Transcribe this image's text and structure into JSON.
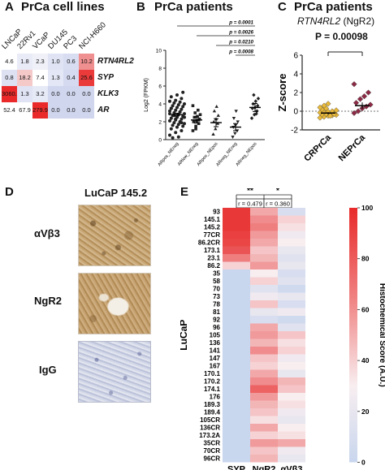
{
  "panelA": {
    "letter": "A",
    "title": "PrCa cell lines",
    "columns": [
      "LNCaP",
      "22Rv1",
      "VCaP",
      "DU145",
      "PC3",
      "NCI-H660"
    ],
    "rows": [
      "RTN4RL2",
      "SYP",
      "KLK3",
      "AR"
    ],
    "values": [
      [
        "4.6",
        "1.8",
        "2.3",
        "1.0",
        "0.6",
        "10.2"
      ],
      [
        "0.8",
        "18.2",
        "7.4",
        "1.3",
        "0.4",
        "25.6"
      ],
      [
        "3060.1",
        "1.3",
        "3.2",
        "0.0",
        "0.0",
        "0.0"
      ],
      [
        "52.4",
        "67.9",
        "279.9",
        "0.0",
        "0.0",
        "0.0"
      ]
    ],
    "colors": [
      [
        "#ffffff",
        "#e9ebf7",
        "#eff0f8",
        "#dfe3f3",
        "#d8ddf1",
        "#f08f8f"
      ],
      [
        "#dde1f2",
        "#f6c9c9",
        "#ffffff",
        "#e4e7f5",
        "#d5daf0",
        "#ea3a3a"
      ],
      [
        "#ea2a2a",
        "#e0e3f4",
        "#e6e9f6",
        "#d0d6ee",
        "#d0d6ee",
        "#d0d6ee"
      ],
      [
        "#ffffff",
        "#ffffff",
        "#ea2a2a",
        "#d0d6ee",
        "#d0d6ee",
        "#d0d6ee"
      ]
    ]
  },
  "panelB": {
    "letter": "B",
    "title": "PrCa patients",
    "ylabel": "Log2 (FPKM)",
    "yticks": [
      "0",
      "2",
      "4",
      "6",
      "8",
      "10"
    ],
    "categories": [
      "ARpos_NEneg",
      "ARlow_NEneg",
      "ARpos_NEpos",
      "ARneg_NEneg",
      "ARneg_NEpos"
    ],
    "pvalues": [
      "p = 0.0001",
      "p = 0.0026",
      "p = 0.0210",
      "p = 0.0008"
    ]
  },
  "panelC": {
    "letter": "C",
    "title": "PrCa patients",
    "subtitle_gene": "RTN4RL2",
    "subtitle_rest": " (NgR2)",
    "pvalue": "P = 0.00098",
    "ylabel": "Z-score",
    "yticks": [
      "-2",
      "0",
      "2",
      "4",
      "6"
    ],
    "categories": [
      "CRPrCa",
      "NEPrCa"
    ]
  },
  "panelD": {
    "letter": "D",
    "title": "LuCaP 145.2",
    "labels": [
      "αVβ3",
      "NgR2",
      "IgG"
    ]
  },
  "panelE": {
    "letter": "E",
    "sig_left": "**",
    "sig_right": "*",
    "r_left": "r = 0.479",
    "r_right": "r = 0.360",
    "ylabel": "LuCaP",
    "columns": [
      "SYP",
      "NgR2",
      "αVβ3"
    ],
    "rows": [
      "93",
      "145.1",
      "145.2",
      "77CR",
      "86.2CR",
      "173.1",
      "23.1",
      "86.2",
      "35",
      "58",
      "70",
      "73",
      "78",
      "81",
      "92",
      "96",
      "105",
      "136",
      "141",
      "147",
      "167",
      "170.1",
      "170.2",
      "174.1",
      "176",
      "189.3",
      "189.4",
      "105CR",
      "136CR",
      "173.2A",
      "35CR",
      "70CR",
      "96CR"
    ],
    "colorbar_label": "Histochemical Score (A.U.)",
    "colorbar_ticks": [
      "0",
      "20",
      "40",
      "60",
      "80",
      "100"
    ]
  },
  "chart_data": [
    {
      "type": "table",
      "panel": "A",
      "title": "PrCa cell lines",
      "columns": [
        "LNCaP",
        "22Rv1",
        "VCaP",
        "DU145",
        "PC3",
        "NCI-H660"
      ],
      "rows": [
        "RTN4RL2",
        "SYP",
        "KLK3",
        "AR"
      ],
      "values": [
        [
          4.6,
          1.8,
          2.3,
          1.0,
          0.6,
          10.2
        ],
        [
          0.8,
          18.2,
          7.4,
          1.3,
          0.4,
          25.6
        ],
        [
          3060.1,
          1.3,
          3.2,
          0.0,
          0.0,
          0.0
        ],
        [
          52.4,
          67.9,
          279.9,
          0.0,
          0.0,
          0.0
        ]
      ]
    },
    {
      "type": "scatter",
      "panel": "B",
      "title": "PrCa patients",
      "ylabel": "Log2 (FPKM)",
      "ylim": [
        0,
        10
      ],
      "categories": [
        "ARpos_NEneg",
        "ARlow_NEneg",
        "ARpos_NEpos",
        "ARneg_NEneg",
        "ARneg_NEpos"
      ],
      "means": [
        2.8,
        2.2,
        1.9,
        1.4,
        3.6
      ],
      "sem": [
        0.15,
        0.35,
        0.45,
        0.4,
        0.45
      ],
      "points": [
        [
          0.5,
          0.8,
          1.0,
          1.2,
          1.4,
          1.5,
          1.6,
          1.7,
          1.8,
          1.9,
          2.0,
          2.1,
          2.2,
          2.3,
          2.4,
          2.5,
          2.6,
          2.7,
          2.8,
          2.9,
          3.0,
          3.1,
          3.2,
          3.3,
          3.4,
          3.5,
          3.6,
          3.7,
          3.8,
          3.9,
          4.0,
          4.1,
          4.2,
          4.3,
          4.4,
          4.6,
          4.8,
          5.0,
          5.3,
          0.2,
          0.3,
          2.5,
          2.7,
          3.1,
          2.9,
          2.3,
          1.9,
          3.5
        ],
        [
          1.0,
          1.5,
          1.8,
          2.0,
          2.1,
          2.3,
          2.5,
          2.6,
          2.8,
          3.0,
          3.3,
          3.8,
          1.2,
          2.2
        ],
        [
          0.6,
          1.2,
          1.8,
          2.0,
          2.3,
          2.7,
          3.2,
          3.7
        ],
        [
          0.3,
          0.7,
          1.0,
          1.4,
          1.6,
          2.0,
          2.4,
          3.2
        ],
        [
          2.4,
          2.8,
          3.2,
          3.5,
          3.6,
          3.8,
          4.0,
          4.3,
          4.6,
          5.0,
          2.9
        ]
      ],
      "comparisons": [
        {
          "from": "ARpos_NEneg",
          "to": "ARneg_NEpos",
          "p": "p = 0.0001"
        },
        {
          "from": "ARlow_NEneg",
          "to": "ARneg_NEpos",
          "p": "p = 0.0026"
        },
        {
          "from": "ARpos_NEpos",
          "to": "ARneg_NEpos",
          "p": "p = 0.0210"
        },
        {
          "from": "ARneg_NEneg",
          "to": "ARneg_NEpos",
          "p": "p = 0.0008"
        }
      ]
    },
    {
      "type": "scatter",
      "panel": "C",
      "title": "PrCa patients",
      "ylabel": "Z-score",
      "ylim": [
        -2,
        6
      ],
      "categories": [
        "CRPrCa",
        "NEPrCa"
      ],
      "pvalue": "P = 0.00098",
      "means": [
        -0.2,
        0.6
      ],
      "sem": [
        0.1,
        0.35
      ],
      "points": [
        [
          -0.7,
          -0.6,
          -0.5,
          -0.45,
          -0.4,
          -0.35,
          -0.3,
          -0.25,
          -0.2,
          -0.15,
          -0.1,
          -0.05,
          0.0,
          0.1,
          0.2,
          0.3,
          -0.5,
          -0.3,
          0.4,
          0.6,
          0.8
        ],
        [
          -0.2,
          0.0,
          0.3,
          0.5,
          0.7,
          0.9,
          1.3,
          1.6,
          2.0,
          2.9
        ]
      ],
      "colors": [
        "#e8b93a",
        "#8c2a45"
      ]
    },
    {
      "type": "heatmap",
      "panel": "E",
      "ylabel": "LuCaP",
      "columns": [
        "SYP",
        "NgR2",
        "αVβ3"
      ],
      "rows": [
        "93",
        "145.1",
        "145.2",
        "77CR",
        "86.2CR",
        "173.1",
        "23.1",
        "86.2",
        "35",
        "58",
        "70",
        "73",
        "78",
        "81",
        "92",
        "96",
        "105",
        "136",
        "141",
        "147",
        "167",
        "170.1",
        "170.2",
        "174.1",
        "176",
        "189.3",
        "189.4",
        "105CR",
        "136CR",
        "173.2A",
        "35CR",
        "70CR",
        "96CR"
      ],
      "values": [
        [
          95,
          55,
          10
        ],
        [
          95,
          65,
          40
        ],
        [
          95,
          70,
          35
        ],
        [
          92,
          60,
          25
        ],
        [
          90,
          55,
          30
        ],
        [
          85,
          45,
          20
        ],
        [
          70,
          50,
          15
        ],
        [
          40,
          60,
          20
        ],
        [
          0,
          30,
          10
        ],
        [
          0,
          40,
          15
        ],
        [
          0,
          15,
          5
        ],
        [
          0,
          25,
          20
        ],
        [
          0,
          45,
          10
        ],
        [
          0,
          20,
          25
        ],
        [
          0,
          10,
          5
        ],
        [
          0,
          55,
          15
        ],
        [
          0,
          60,
          45
        ],
        [
          0,
          50,
          35
        ],
        [
          0,
          65,
          40
        ],
        [
          0,
          45,
          25
        ],
        [
          0,
          40,
          30
        ],
        [
          0,
          55,
          20
        ],
        [
          0,
          65,
          50
        ],
        [
          0,
          80,
          45
        ],
        [
          0,
          60,
          30
        ],
        [
          0,
          50,
          35
        ],
        [
          0,
          45,
          25
        ],
        [
          0,
          35,
          20
        ],
        [
          0,
          55,
          30
        ],
        [
          0,
          40,
          35
        ],
        [
          0,
          60,
          55
        ],
        [
          0,
          45,
          25
        ],
        [
          0,
          50,
          20
        ]
      ],
      "colorbar_label": "Histochemical Score (A.U.)",
      "zlim": [
        0,
        100
      ],
      "correlations": [
        {
          "pair": "SYP-NgR2",
          "r": "r = 0.479",
          "sig": "**"
        },
        {
          "pair": "NgR2-αVβ3",
          "r": "r = 0.360",
          "sig": "*"
        }
      ]
    }
  ]
}
